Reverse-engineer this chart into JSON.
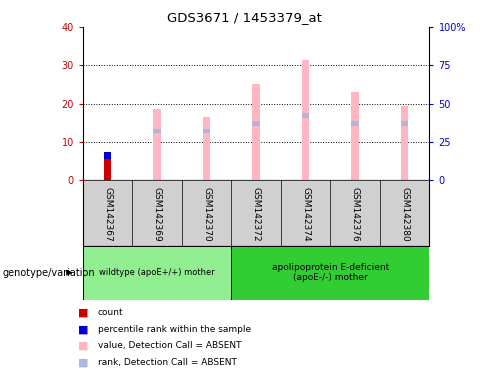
{
  "title": "GDS3671 / 1453379_at",
  "samples": [
    "GSM142367",
    "GSM142369",
    "GSM142370",
    "GSM142372",
    "GSM142374",
    "GSM142376",
    "GSM142380"
  ],
  "value_absent": [
    0.0,
    18.5,
    16.5,
    25.0,
    31.5,
    23.0,
    19.5
  ],
  "rank_absent_top": [
    0.0,
    13.5,
    13.5,
    15.5,
    17.5,
    15.5,
    15.5
  ],
  "count": [
    5.5,
    0,
    0,
    0,
    0,
    0,
    0
  ],
  "percentile_rank_bottom": [
    5.5,
    0,
    0,
    0,
    0,
    0,
    0
  ],
  "percentile_rank_height": [
    2.0,
    0,
    0,
    0,
    0,
    0,
    0
  ],
  "ylim_left": [
    0,
    40
  ],
  "ylim_right": [
    0,
    100
  ],
  "yticks_left": [
    0,
    10,
    20,
    30,
    40
  ],
  "yticks_right": [
    0,
    25,
    50,
    75,
    100
  ],
  "ytick_labels_right": [
    "0",
    "25",
    "50",
    "75",
    "100%"
  ],
  "colors": {
    "count": "#cc0000",
    "percentile_rank": "#0000cc",
    "value_absent": "#ffb6c1",
    "rank_absent": "#b0b4e0",
    "background": "#ffffff",
    "left_axis": "#cc0000",
    "right_axis": "#0000cc",
    "grid": "#000000",
    "gray_header": "#d0d0d0",
    "group1": "#90ee90",
    "group2": "#32cd32"
  },
  "bar_width": 0.15,
  "group1_label": "wildtype (apoE+/+) mother",
  "group2_label": "apolipoprotein E-deficient\n(apoE-/-) mother",
  "group1_samples": 3,
  "group2_samples": 4,
  "legend_items": [
    {
      "color": "#cc0000",
      "label": "count"
    },
    {
      "color": "#0000cc",
      "label": "percentile rank within the sample"
    },
    {
      "color": "#ffb6c1",
      "label": "value, Detection Call = ABSENT"
    },
    {
      "color": "#b0b4e0",
      "label": "rank, Detection Call = ABSENT"
    }
  ]
}
